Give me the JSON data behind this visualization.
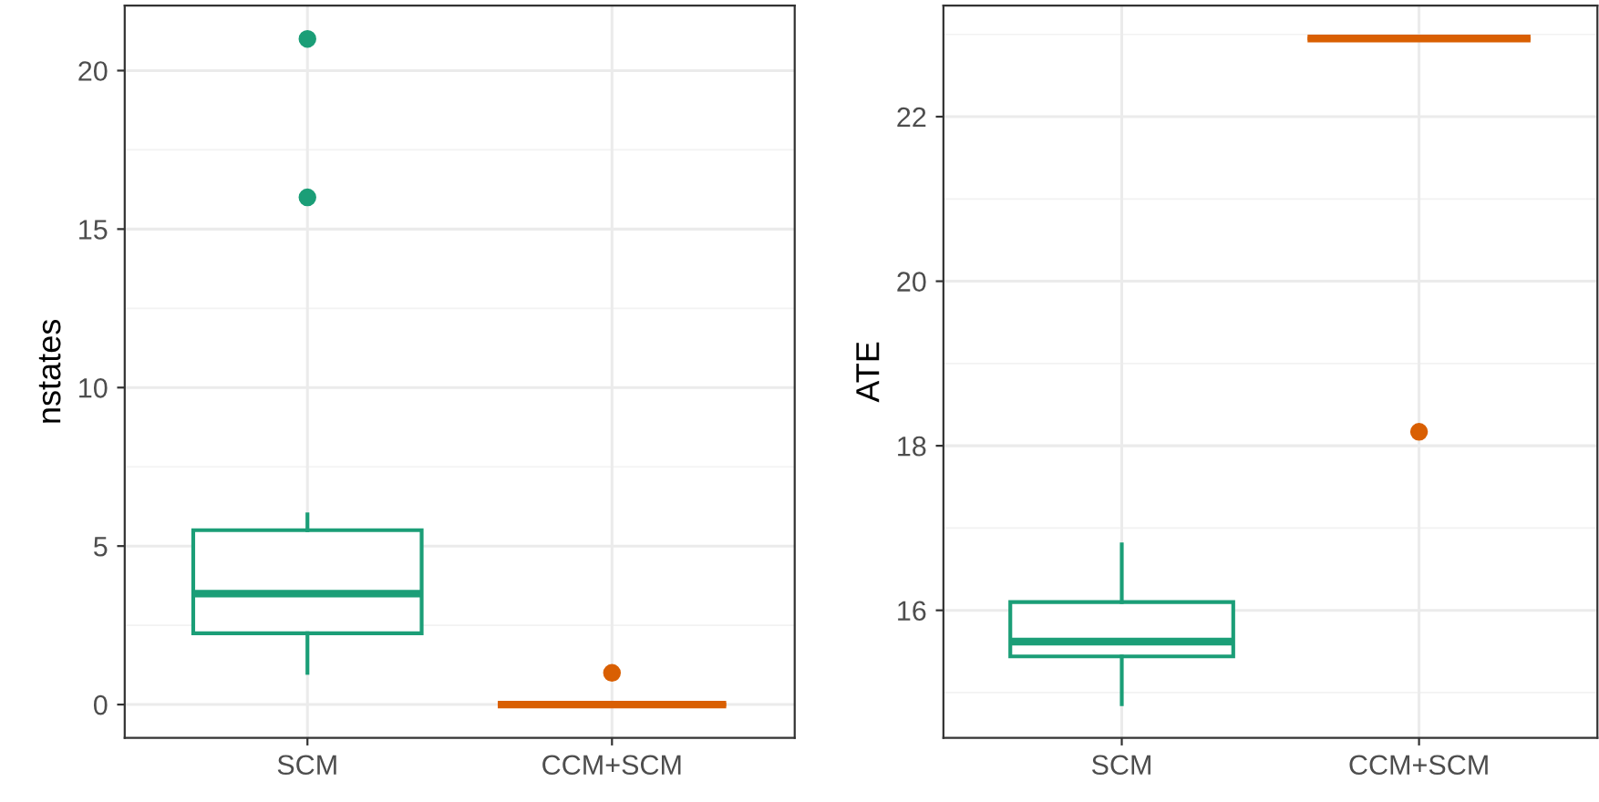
{
  "chart_data": [
    {
      "type": "box",
      "ylabel": "nstates",
      "categories": [
        "SCM",
        "CCM+SCM"
      ],
      "colors": [
        "#1b9e77",
        "#d95f02"
      ],
      "boxes": [
        {
          "low": 1,
          "q1": 2.25,
          "median": 3.5,
          "q3": 5.5,
          "high": 6,
          "outliers": [
            16,
            21
          ]
        },
        {
          "low": 0,
          "q1": 0,
          "median": 0,
          "q3": 0,
          "high": 0,
          "outliers": [
            1
          ]
        }
      ],
      "ylim": [
        -1.05,
        22.05
      ],
      "yticks": [
        0,
        5,
        10,
        15,
        20
      ],
      "grid": true
    },
    {
      "type": "box",
      "ylabel": "ATE",
      "categories": [
        "SCM",
        "CCM+SCM"
      ],
      "colors": [
        "#1b9e77",
        "#d95f02"
      ],
      "boxes": [
        {
          "low": 14.86,
          "q1": 15.44,
          "median": 15.62,
          "q3": 16.1,
          "high": 16.8
        },
        {
          "low": 22.95,
          "q1": 22.95,
          "median": 22.95,
          "q3": 22.95,
          "high": 22.95,
          "outliers": [
            18.17
          ]
        }
      ],
      "ylim": [
        14.45,
        23.35
      ],
      "yticks": [
        16,
        18,
        20,
        22
      ],
      "grid": true
    }
  ]
}
